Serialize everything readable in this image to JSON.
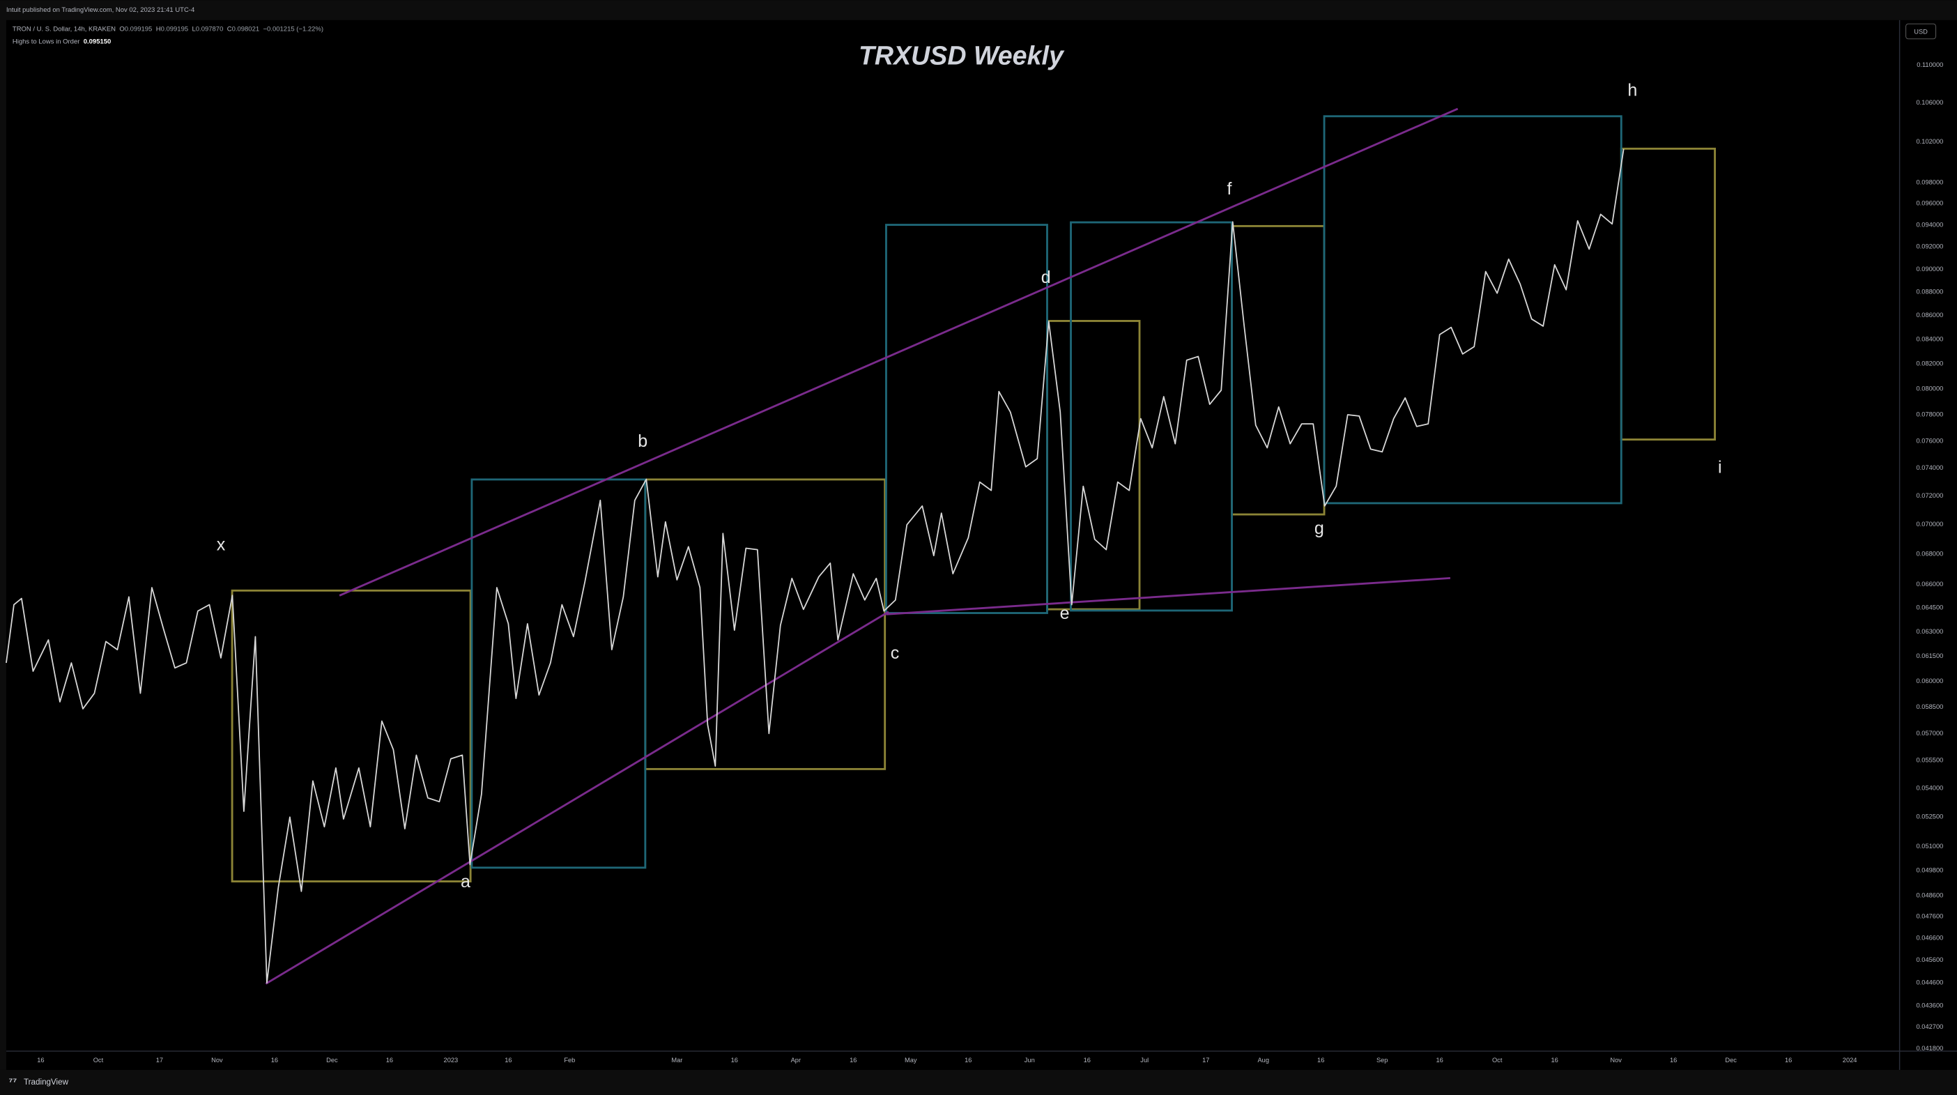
{
  "published": "Intuit published on TradingView.com, Nov 02, 2023 21:41 UTC-4",
  "legend": {
    "symbol": "TRON / U. S. Dollar, 14h, KRAKEN",
    "ohlc": [
      {
        "key": "O",
        "value": "0.099195"
      },
      {
        "key": "H",
        "value": "0.099195"
      },
      {
        "key": "L",
        "value": "0.097870"
      },
      {
        "key": "C",
        "value": "0.098021"
      }
    ],
    "change": "−0.001215 (−1.22%)",
    "indicator": "Highs to Lows in Order",
    "indicator_value": "0.095150"
  },
  "currency": "USD",
  "brand": "TradingView",
  "chart_data": {
    "type": "line",
    "title": "TRXUSD Weekly",
    "color": "#d8d8d8",
    "log_scale": true,
    "grid": false,
    "annotations": [
      "x",
      "a",
      "b",
      "c",
      "d",
      "e",
      "f",
      "g",
      "h",
      "i"
    ],
    "x": [
      -24,
      -22,
      -20,
      -17,
      -13,
      -10,
      -7,
      -4,
      -1,
      2,
      5,
      8,
      11,
      14,
      17,
      20,
      23,
      26,
      29,
      32,
      35,
      38,
      41,
      44,
      47,
      50,
      53,
      56,
      59,
      62,
      64,
      68,
      71,
      74,
      77,
      80,
      83,
      86,
      89,
      92,
      95,
      97,
      100,
      104,
      107,
      109,
      112,
      115,
      118,
      121,
      124,
      127,
      131,
      134,
      137,
      140,
      143,
      146,
      148,
      151,
      154,
      157,
      159,
      161,
      163,
      166,
      169,
      172,
      175,
      178,
      181,
      184,
      188,
      191,
      193,
      197,
      200,
      203,
      205,
      208,
      211,
      215,
      218,
      220,
      223,
      227,
      230,
      233,
      235,
      238,
      242,
      245,
      248,
      251,
      254,
      257,
      260,
      263,
      266,
      269,
      272,
      275,
      278,
      281,
      284,
      287,
      290,
      293,
      296,
      299,
      302,
      305,
      308,
      311,
      314,
      317,
      320,
      323,
      326,
      329,
      332,
      335,
      338,
      341,
      344,
      347,
      350,
      353,
      356,
      359,
      362,
      365,
      368,
      371,
      374,
      377,
      380,
      383,
      386,
      389,
      392,
      395,
      398
    ],
    "values": [
      0.0611,
      0.0647,
      0.0651,
      0.0606,
      0.0625,
      0.0588,
      0.0611,
      0.0584,
      0.0593,
      0.0624,
      0.0619,
      0.0652,
      0.0593,
      0.0658,
      0.0632,
      0.0608,
      0.0611,
      0.0643,
      0.0647,
      0.0614,
      0.0653,
      0.0528,
      0.0627,
      0.0446,
      0.049,
      0.0525,
      0.0488,
      0.0544,
      0.052,
      0.0551,
      0.0524,
      0.0551,
      0.052,
      0.0577,
      0.0561,
      0.0519,
      0.0558,
      0.0535,
      0.0533,
      0.0556,
      0.0558,
      0.0501,
      0.0537,
      0.0658,
      0.0635,
      0.059,
      0.0635,
      0.0592,
      0.0611,
      0.0647,
      0.0627,
      0.0662,
      0.0717,
      0.0619,
      0.0652,
      0.0717,
      0.0732,
      0.0665,
      0.0702,
      0.0663,
      0.0685,
      0.0658,
      0.0575,
      0.0552,
      0.0694,
      0.0631,
      0.0684,
      0.0683,
      0.057,
      0.0634,
      0.0664,
      0.0644,
      0.0665,
      0.0674,
      0.0625,
      0.0667,
      0.065,
      0.0664,
      0.0643,
      0.065,
      0.07,
      0.0713,
      0.0679,
      0.0708,
      0.0667,
      0.0691,
      0.073,
      0.0724,
      0.0798,
      0.0782,
      0.0741,
      0.0747,
      0.0855,
      0.0782,
      0.0647,
      0.0727,
      0.069,
      0.0683,
      0.073,
      0.0724,
      0.0777,
      0.0755,
      0.0794,
      0.0758,
      0.0823,
      0.0826,
      0.0788,
      0.0799,
      0.0943,
      0.0851,
      0.0772,
      0.0755,
      0.0786,
      0.0758,
      0.0773,
      0.0773,
      0.0713,
      0.0727,
      0.078,
      0.0779,
      0.0754,
      0.0752,
      0.0777,
      0.0793,
      0.0771,
      0.0773,
      0.0844,
      0.085,
      0.0828,
      0.0834,
      0.0898,
      0.0879,
      0.0909,
      0.0887,
      0.0857,
      0.0851,
      0.0904,
      0.0882,
      0.0944,
      0.0918,
      0.095,
      0.0941,
      0.1013
    ],
    "xlim": [
      -24,
      470
    ],
    "ylim": [
      0.0417,
      0.115
    ],
    "yticks": [
      {
        "value": 0.11,
        "label": "0.110000"
      },
      {
        "value": 0.106,
        "label": "0.106000"
      },
      {
        "value": 0.102,
        "label": "0.102000"
      },
      {
        "value": 0.098,
        "label": "0.098000"
      },
      {
        "value": 0.096,
        "label": "0.096000"
      },
      {
        "value": 0.094,
        "label": "0.094000"
      },
      {
        "value": 0.092,
        "label": "0.092000"
      },
      {
        "value": 0.09,
        "label": "0.090000"
      },
      {
        "value": 0.088,
        "label": "0.088000"
      },
      {
        "value": 0.086,
        "label": "0.086000"
      },
      {
        "value": 0.084,
        "label": "0.084000"
      },
      {
        "value": 0.082,
        "label": "0.082000"
      },
      {
        "value": 0.08,
        "label": "0.080000"
      },
      {
        "value": 0.078,
        "label": "0.078000"
      },
      {
        "value": 0.076,
        "label": "0.076000"
      },
      {
        "value": 0.074,
        "label": "0.074000"
      },
      {
        "value": 0.072,
        "label": "0.072000"
      },
      {
        "value": 0.07,
        "label": "0.070000"
      },
      {
        "value": 0.068,
        "label": "0.068000"
      },
      {
        "value": 0.066,
        "label": "0.066000"
      },
      {
        "value": 0.0645,
        "label": "0.064500"
      },
      {
        "value": 0.063,
        "label": "0.063000"
      },
      {
        "value": 0.0615,
        "label": "0.061500"
      },
      {
        "value": 0.06,
        "label": "0.060000"
      },
      {
        "value": 0.0585,
        "label": "0.058500"
      },
      {
        "value": 0.057,
        "label": "0.057000"
      },
      {
        "value": 0.0555,
        "label": "0.055500"
      },
      {
        "value": 0.054,
        "label": "0.054000"
      },
      {
        "value": 0.0525,
        "label": "0.052500"
      },
      {
        "value": 0.051,
        "label": "0.051000"
      },
      {
        "value": 0.0498,
        "label": "0.049800"
      },
      {
        "value": 0.0486,
        "label": "0.048600"
      },
      {
        "value": 0.0476,
        "label": "0.047600"
      },
      {
        "value": 0.0466,
        "label": "0.046600"
      },
      {
        "value": 0.0456,
        "label": "0.045600"
      },
      {
        "value": 0.0446,
        "label": "0.044600"
      },
      {
        "value": 0.0436,
        "label": "0.043600"
      },
      {
        "value": 0.0427,
        "label": "0.042700"
      },
      {
        "value": 0.0418,
        "label": "0.041800"
      }
    ],
    "xticks": [
      {
        "value": -15,
        "label": "16"
      },
      {
        "value": 0,
        "label": "Oct"
      },
      {
        "value": 16,
        "label": "17"
      },
      {
        "value": 31,
        "label": "Nov"
      },
      {
        "value": 46,
        "label": "16"
      },
      {
        "value": 61,
        "label": "Dec"
      },
      {
        "value": 76,
        "label": "16"
      },
      {
        "value": 92,
        "label": "2023"
      },
      {
        "value": 107,
        "label": "16"
      },
      {
        "value": 123,
        "label": "Feb"
      },
      {
        "value": 151,
        "label": "Mar"
      },
      {
        "value": 166,
        "label": "16"
      },
      {
        "value": 182,
        "label": "Apr"
      },
      {
        "value": 197,
        "label": "16"
      },
      {
        "value": 212,
        "label": "May"
      },
      {
        "value": 227,
        "label": "16"
      },
      {
        "value": 243,
        "label": "Jun"
      },
      {
        "value": 258,
        "label": "16"
      },
      {
        "value": 273,
        "label": "Jul"
      },
      {
        "value": 289,
        "label": "17"
      },
      {
        "value": 304,
        "label": "Aug"
      },
      {
        "value": 319,
        "label": "16"
      },
      {
        "value": 335,
        "label": "Sep"
      },
      {
        "value": 350,
        "label": "16"
      },
      {
        "value": 365,
        "label": "Oct"
      },
      {
        "value": 380,
        "label": "16"
      },
      {
        "value": 396,
        "label": "Nov"
      },
      {
        "value": 411,
        "label": "16"
      },
      {
        "value": 426,
        "label": "Dec"
      },
      {
        "value": 441,
        "label": "16"
      },
      {
        "value": 457,
        "label": "2024"
      }
    ]
  }
}
